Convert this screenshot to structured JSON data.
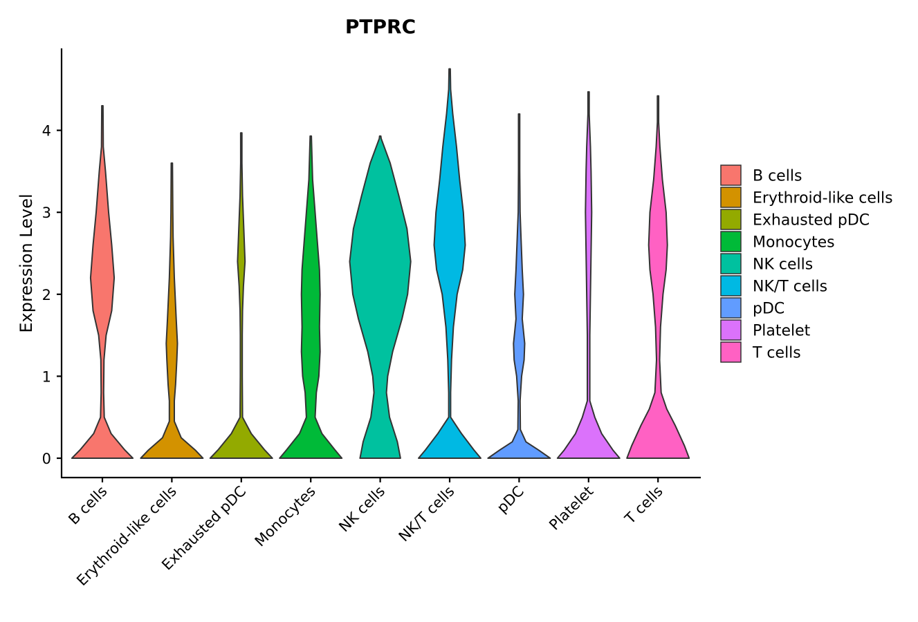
{
  "chart_data": {
    "type": "violin",
    "title": "PTPRC",
    "xlabel": "",
    "ylabel": "Expression Level",
    "ylim": [
      -0.22,
      5.0
    ],
    "yticks": [
      0,
      1,
      2,
      3,
      4
    ],
    "legend_position": "right",
    "grid": false,
    "categories": [
      "B cells",
      "Erythroid-like cells",
      "Exhausted pDC",
      "Monocytes",
      "NK cells",
      "NK/T cells",
      "pDC",
      "Platelet",
      "T cells"
    ],
    "colors": [
      "#F8766D",
      "#D39200",
      "#93AA00",
      "#00BA38",
      "#00C19F",
      "#00B9E3",
      "#619CFF",
      "#DB72FB",
      "#FF61C3"
    ],
    "series": [
      {
        "name": "B cells",
        "max": 4.3,
        "profile": [
          [
            0,
            0.98
          ],
          [
            0.1,
            0.72
          ],
          [
            0.3,
            0.28
          ],
          [
            0.5,
            0.06
          ],
          [
            0.8,
            0.04
          ],
          [
            1.2,
            0.05
          ],
          [
            1.5,
            0.12
          ],
          [
            1.8,
            0.3
          ],
          [
            2.2,
            0.38
          ],
          [
            2.6,
            0.3
          ],
          [
            3.0,
            0.2
          ],
          [
            3.5,
            0.1
          ],
          [
            3.8,
            0.03
          ],
          [
            4.3,
            0.02
          ]
        ]
      },
      {
        "name": "Erythroid-like cells",
        "max": 3.6,
        "profile": [
          [
            0,
            1.0
          ],
          [
            0.1,
            0.75
          ],
          [
            0.25,
            0.3
          ],
          [
            0.45,
            0.08
          ],
          [
            0.7,
            0.08
          ],
          [
            0.9,
            0.12
          ],
          [
            1.2,
            0.16
          ],
          [
            1.4,
            0.18
          ],
          [
            1.7,
            0.14
          ],
          [
            2.2,
            0.08
          ],
          [
            2.7,
            0.04
          ],
          [
            3.0,
            0.03
          ],
          [
            3.6,
            0.02
          ]
        ]
      },
      {
        "name": "Exhausted pDC",
        "max": 3.97,
        "profile": [
          [
            0,
            1.0
          ],
          [
            0.1,
            0.75
          ],
          [
            0.3,
            0.32
          ],
          [
            0.5,
            0.04
          ],
          [
            1.0,
            0.03
          ],
          [
            1.5,
            0.03
          ],
          [
            1.8,
            0.04
          ],
          [
            2.1,
            0.07
          ],
          [
            2.4,
            0.12
          ],
          [
            2.8,
            0.08
          ],
          [
            3.2,
            0.04
          ],
          [
            3.6,
            0.02
          ],
          [
            3.97,
            0.02
          ]
        ]
      },
      {
        "name": "Monocytes",
        "max": 3.93,
        "profile": [
          [
            0,
            1.0
          ],
          [
            0.1,
            0.78
          ],
          [
            0.3,
            0.36
          ],
          [
            0.5,
            0.14
          ],
          [
            0.8,
            0.18
          ],
          [
            1.0,
            0.26
          ],
          [
            1.3,
            0.3
          ],
          [
            1.6,
            0.28
          ],
          [
            2.0,
            0.3
          ],
          [
            2.3,
            0.28
          ],
          [
            2.7,
            0.2
          ],
          [
            3.1,
            0.12
          ],
          [
            3.4,
            0.06
          ],
          [
            3.93,
            0.02
          ]
        ]
      },
      {
        "name": "NK cells",
        "max": 3.93,
        "profile": [
          [
            0,
            0.65
          ],
          [
            0.2,
            0.55
          ],
          [
            0.5,
            0.3
          ],
          [
            0.8,
            0.2
          ],
          [
            1.0,
            0.24
          ],
          [
            1.3,
            0.4
          ],
          [
            1.7,
            0.7
          ],
          [
            2.0,
            0.88
          ],
          [
            2.4,
            0.98
          ],
          [
            2.8,
            0.86
          ],
          [
            3.2,
            0.6
          ],
          [
            3.6,
            0.32
          ],
          [
            3.9,
            0.03
          ]
        ]
      },
      {
        "name": "NK/T cells",
        "max": 4.75,
        "profile": [
          [
            0,
            1.0
          ],
          [
            0.1,
            0.78
          ],
          [
            0.3,
            0.38
          ],
          [
            0.5,
            0.03
          ],
          [
            0.8,
            0.03
          ],
          [
            1.2,
            0.06
          ],
          [
            1.6,
            0.12
          ],
          [
            2.0,
            0.24
          ],
          [
            2.3,
            0.42
          ],
          [
            2.6,
            0.5
          ],
          [
            3.0,
            0.44
          ],
          [
            3.4,
            0.32
          ],
          [
            3.8,
            0.22
          ],
          [
            4.2,
            0.1
          ],
          [
            4.5,
            0.03
          ],
          [
            4.75,
            0.02
          ]
        ]
      },
      {
        "name": "pDC",
        "max": 4.2,
        "profile": [
          [
            0,
            1.0
          ],
          [
            0.1,
            0.62
          ],
          [
            0.2,
            0.22
          ],
          [
            0.35,
            0.04
          ],
          [
            0.7,
            0.03
          ],
          [
            1.0,
            0.08
          ],
          [
            1.2,
            0.16
          ],
          [
            1.4,
            0.18
          ],
          [
            1.7,
            0.1
          ],
          [
            2.0,
            0.14
          ],
          [
            2.3,
            0.1
          ],
          [
            2.7,
            0.06
          ],
          [
            3.0,
            0.03
          ],
          [
            3.5,
            0.02
          ],
          [
            4.2,
            0.02
          ]
        ]
      },
      {
        "name": "Platelet",
        "max": 4.47,
        "profile": [
          [
            0,
            1.0
          ],
          [
            0.1,
            0.78
          ],
          [
            0.3,
            0.42
          ],
          [
            0.5,
            0.2
          ],
          [
            0.7,
            0.04
          ],
          [
            1.0,
            0.04
          ],
          [
            1.5,
            0.04
          ],
          [
            2.0,
            0.06
          ],
          [
            2.5,
            0.08
          ],
          [
            3.0,
            0.1
          ],
          [
            3.5,
            0.08
          ],
          [
            3.8,
            0.06
          ],
          [
            4.2,
            0.02
          ],
          [
            4.47,
            0.02
          ]
        ]
      },
      {
        "name": "T cells",
        "max": 4.42,
        "profile": [
          [
            0,
            1.0
          ],
          [
            0.15,
            0.85
          ],
          [
            0.4,
            0.55
          ],
          [
            0.6,
            0.28
          ],
          [
            0.8,
            0.1
          ],
          [
            1.2,
            0.05
          ],
          [
            1.6,
            0.08
          ],
          [
            2.0,
            0.16
          ],
          [
            2.3,
            0.26
          ],
          [
            2.6,
            0.3
          ],
          [
            3.0,
            0.26
          ],
          [
            3.4,
            0.14
          ],
          [
            3.8,
            0.06
          ],
          [
            4.1,
            0.02
          ],
          [
            4.42,
            0.02
          ]
        ]
      }
    ]
  }
}
